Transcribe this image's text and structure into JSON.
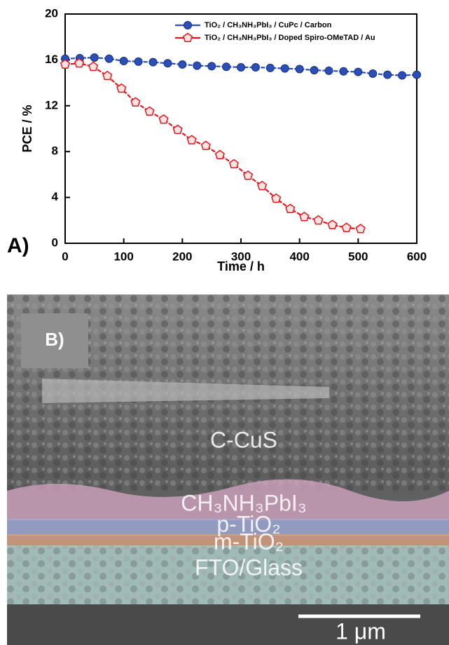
{
  "chart_data": {
    "type": "line",
    "panel_label": "A)",
    "xlabel": "Time / h",
    "ylabel": "PCE / %",
    "xlim": [
      0,
      600
    ],
    "ylim": [
      0,
      20
    ],
    "xticks": [
      0,
      100,
      200,
      300,
      400,
      500,
      600
    ],
    "yticks": [
      0,
      4,
      8,
      12,
      16,
      20
    ],
    "legend": "upper right",
    "series": [
      {
        "name": "TiO₂ / CH₃NH₃PbI₃ / CuPc / Carbon",
        "color": "#2b4fb8",
        "marker": "circle",
        "x": [
          0,
          25,
          50,
          75,
          100,
          125,
          150,
          175,
          200,
          225,
          250,
          275,
          300,
          325,
          350,
          375,
          400,
          425,
          450,
          475,
          500,
          525,
          550,
          575,
          600
        ],
        "values": [
          16.1,
          16.15,
          16.2,
          16.1,
          15.9,
          15.85,
          15.8,
          15.7,
          15.6,
          15.5,
          15.45,
          15.4,
          15.35,
          15.35,
          15.3,
          15.25,
          15.2,
          15.1,
          15.05,
          15.0,
          14.95,
          14.8,
          14.7,
          14.65,
          14.7
        ]
      },
      {
        "name": "TiO₂ / CH₃NH₃PbI₃ / Doped Spiro-OMeTAD / Au",
        "color": "#e8141c",
        "marker": "pentagon",
        "x": [
          0,
          24,
          48,
          72,
          96,
          120,
          144,
          168,
          192,
          216,
          240,
          264,
          288,
          312,
          336,
          360,
          384,
          408,
          432,
          456,
          480,
          504
        ],
        "values": [
          15.6,
          15.7,
          15.4,
          14.6,
          13.5,
          12.3,
          11.5,
          10.8,
          9.9,
          9.0,
          8.5,
          7.7,
          6.9,
          5.9,
          5.0,
          3.9,
          3.0,
          2.3,
          2.0,
          1.6,
          1.35,
          1.25
        ]
      }
    ]
  },
  "panel_b": {
    "label": "B)",
    "layers": [
      "C-CuS",
      "CH₃NH₃PbI₃",
      "p-TiO₂",
      "m-TiO₂",
      "FTO/Glass"
    ],
    "scale_bar": "1 μm"
  }
}
